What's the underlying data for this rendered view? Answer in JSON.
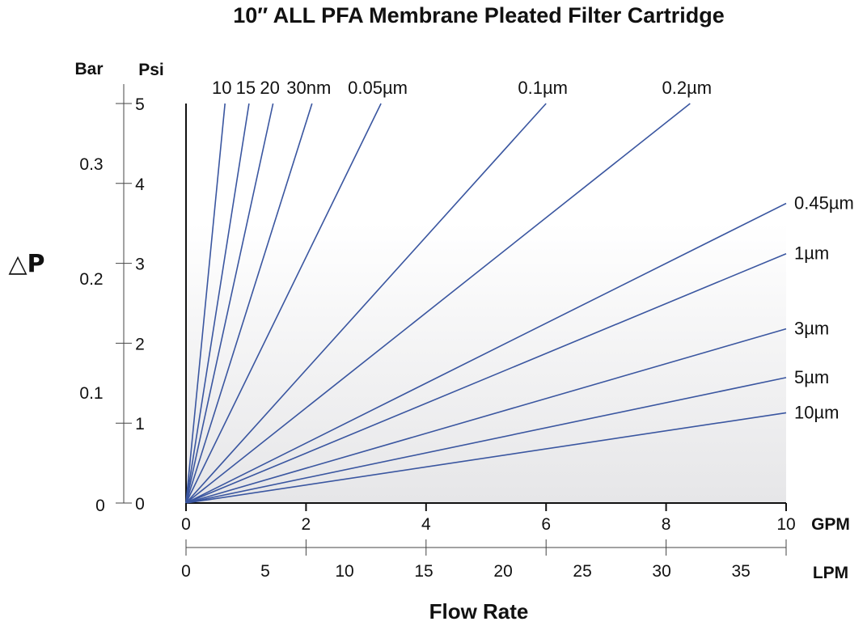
{
  "chart_data": {
    "type": "line",
    "title": "10″ ALL PFA Membrane Pleated Filter Cartridge",
    "xlabel": "Flow Rate",
    "ylabel": "△P",
    "x_axis_gpm": {
      "unit": "GPM",
      "range": [
        0,
        10
      ],
      "ticks": [
        "0",
        "2",
        "4",
        "6",
        "8",
        "10"
      ]
    },
    "x_axis_lpm": {
      "unit": "LPM",
      "range": [
        0,
        37.85
      ],
      "ticks": [
        "0",
        "5",
        "10",
        "15",
        "20",
        "25",
        "30",
        "35"
      ]
    },
    "y_axis_psi": {
      "unit": "Psi",
      "range": [
        0,
        5
      ],
      "ticks": [
        "0",
        "1",
        "2",
        "3",
        "4",
        "5"
      ]
    },
    "y_axis_bar": {
      "unit": "Bar",
      "ticks": [
        "0",
        "0.1",
        "0.2",
        "0.3"
      ]
    },
    "series": [
      {
        "name": "10",
        "points": [
          [
            0,
            0
          ],
          [
            0.65,
            5.0
          ]
        ]
      },
      {
        "name": "15",
        "points": [
          [
            0,
            0
          ],
          [
            1.05,
            5.0
          ]
        ]
      },
      {
        "name": "20",
        "points": [
          [
            0,
            0
          ],
          [
            1.45,
            5.0
          ]
        ]
      },
      {
        "name": "30nm",
        "points": [
          [
            0,
            0
          ],
          [
            2.1,
            5.0
          ]
        ]
      },
      {
        "name": "0.05µm",
        "points": [
          [
            0,
            0
          ],
          [
            3.25,
            5.0
          ]
        ]
      },
      {
        "name": "0.1µm",
        "points": [
          [
            0,
            0
          ],
          [
            6.0,
            5.0
          ]
        ]
      },
      {
        "name": "0.2µm",
        "points": [
          [
            0,
            0
          ],
          [
            8.4,
            5.0
          ]
        ]
      },
      {
        "name": "0.45µm",
        "points": [
          [
            0,
            0
          ],
          [
            10.0,
            3.75
          ]
        ]
      },
      {
        "name": "1µm",
        "points": [
          [
            0,
            0
          ],
          [
            10.0,
            3.12
          ]
        ]
      },
      {
        "name": "3µm",
        "points": [
          [
            0,
            0
          ],
          [
            10.0,
            2.18
          ]
        ]
      },
      {
        "name": "5µm",
        "points": [
          [
            0,
            0
          ],
          [
            10.0,
            1.57
          ]
        ]
      },
      {
        "name": "10µm",
        "points": [
          [
            0,
            0
          ],
          [
            10.0,
            1.13
          ]
        ]
      }
    ]
  }
}
